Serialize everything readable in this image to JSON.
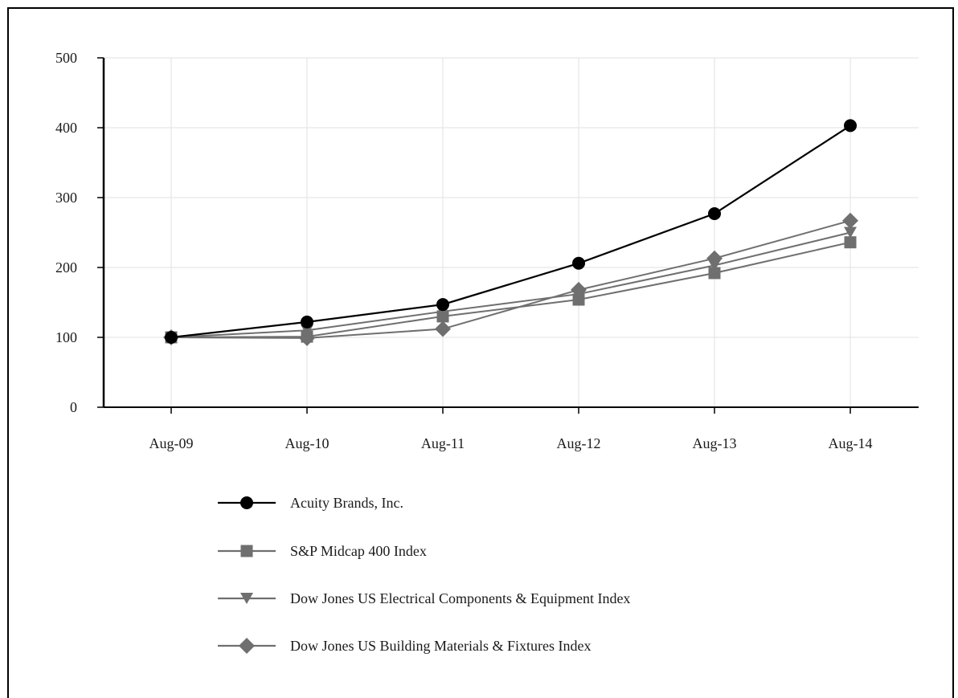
{
  "chart_data": {
    "type": "line",
    "title": "",
    "xlabel": "",
    "ylabel": "",
    "categories": [
      "Aug-09",
      "Aug-10",
      "Aug-11",
      "Aug-12",
      "Aug-13",
      "Aug-14"
    ],
    "y_ticks": [
      "0",
      "100",
      "200",
      "300",
      "400",
      "500"
    ],
    "ylim": [
      0,
      500
    ],
    "grid": true,
    "legend_position": "bottom",
    "series": [
      {
        "name": "Acuity Brands, Inc.",
        "marker": "circle",
        "color": "#000000",
        "values": [
          100,
          122,
          147,
          206,
          277,
          403
        ]
      },
      {
        "name": "S&P Midcap 400 Index",
        "marker": "square",
        "color": "#6f6f6f",
        "values": [
          100,
          101,
          130,
          154,
          192,
          236
        ]
      },
      {
        "name": "Dow Jones US Electrical Components & Equipment Index",
        "marker": "triangle-down",
        "color": "#6f6f6f",
        "values": [
          100,
          110,
          137,
          162,
          203,
          250
        ]
      },
      {
        "name": "Dow Jones US Building Materials & Fixtures Index",
        "marker": "diamond",
        "color": "#6f6f6f",
        "values": [
          100,
          99,
          112,
          168,
          213,
          267
        ]
      }
    ]
  }
}
